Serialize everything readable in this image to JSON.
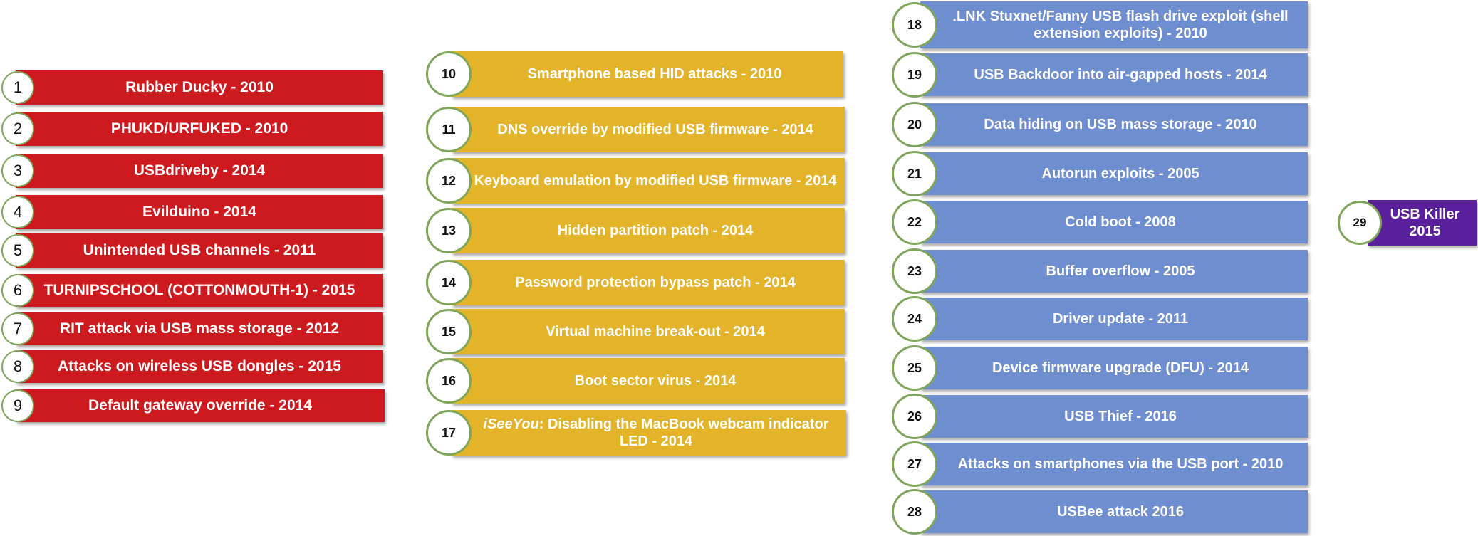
{
  "items": [
    {
      "num": "1",
      "label": "Rubber Ducky - 2010"
    },
    {
      "num": "2",
      "label": "PHUKD/URFUKED - 2010"
    },
    {
      "num": "3",
      "label": "USBdriveby - 2014"
    },
    {
      "num": "4",
      "label": "Evilduino - 2014"
    },
    {
      "num": "5",
      "label": "Unintended USB channels - 2011"
    },
    {
      "num": "6",
      "label": "TURNIPSCHOOL (COTTONMOUTH-1) - 2015"
    },
    {
      "num": "7",
      "label": "RIT attack via USB mass storage - 2012"
    },
    {
      "num": "8",
      "label": "Attacks on wireless USB dongles  - 2015"
    },
    {
      "num": "9",
      "label": "Default gateway override - 2014"
    },
    {
      "num": "10",
      "label": "Smartphone based HID attacks - 2010"
    },
    {
      "num": "11",
      "label": "DNS override by modified USB firmware - 2014"
    },
    {
      "num": "12",
      "label": "Keyboard emulation by modified USB firmware - 2014"
    },
    {
      "num": "13",
      "label": "Hidden partition patch - 2014"
    },
    {
      "num": "14",
      "label": "Password protection bypass patch - 2014"
    },
    {
      "num": "15",
      "label": "Virtual machine break-out - 2014"
    },
    {
      "num": "16",
      "label": "Boot sector virus - 2014"
    },
    {
      "num": "17",
      "label_em": "iSeeYou",
      "label": ": Disabling the MacBook webcam indicator LED - 2014"
    },
    {
      "num": "18",
      "label": ".LNK Stuxnet/Fanny USB flash drive exploit (shell extension exploits) - 2010"
    },
    {
      "num": "19",
      "label": "USB Backdoor into air-gapped hosts - 2014"
    },
    {
      "num": "20",
      "label": "Data hiding on USB mass storage - 2010"
    },
    {
      "num": "21",
      "label": "Autorun exploits - 2005"
    },
    {
      "num": "22",
      "label": "Cold boot - 2008"
    },
    {
      "num": "23",
      "label": "Buffer overflow - 2005"
    },
    {
      "num": "24",
      "label": "Driver update - 2011"
    },
    {
      "num": "25",
      "label": "Device firmware upgrade (DFU) - 2014"
    },
    {
      "num": "26",
      "label": "USB Thief - 2016"
    },
    {
      "num": "27",
      "label": "Attacks on smartphones via the USB port - 2010"
    },
    {
      "num": "28",
      "label": "USBee attack 2016"
    },
    {
      "num": "29",
      "label": "USB Killer 2015"
    }
  ],
  "colors": {
    "red": "#cc1a1f",
    "gold": "#e3b32a",
    "blue": "#6f8ecf",
    "purple": "#5a1f9a",
    "badge_ring": "#7fa55a"
  }
}
